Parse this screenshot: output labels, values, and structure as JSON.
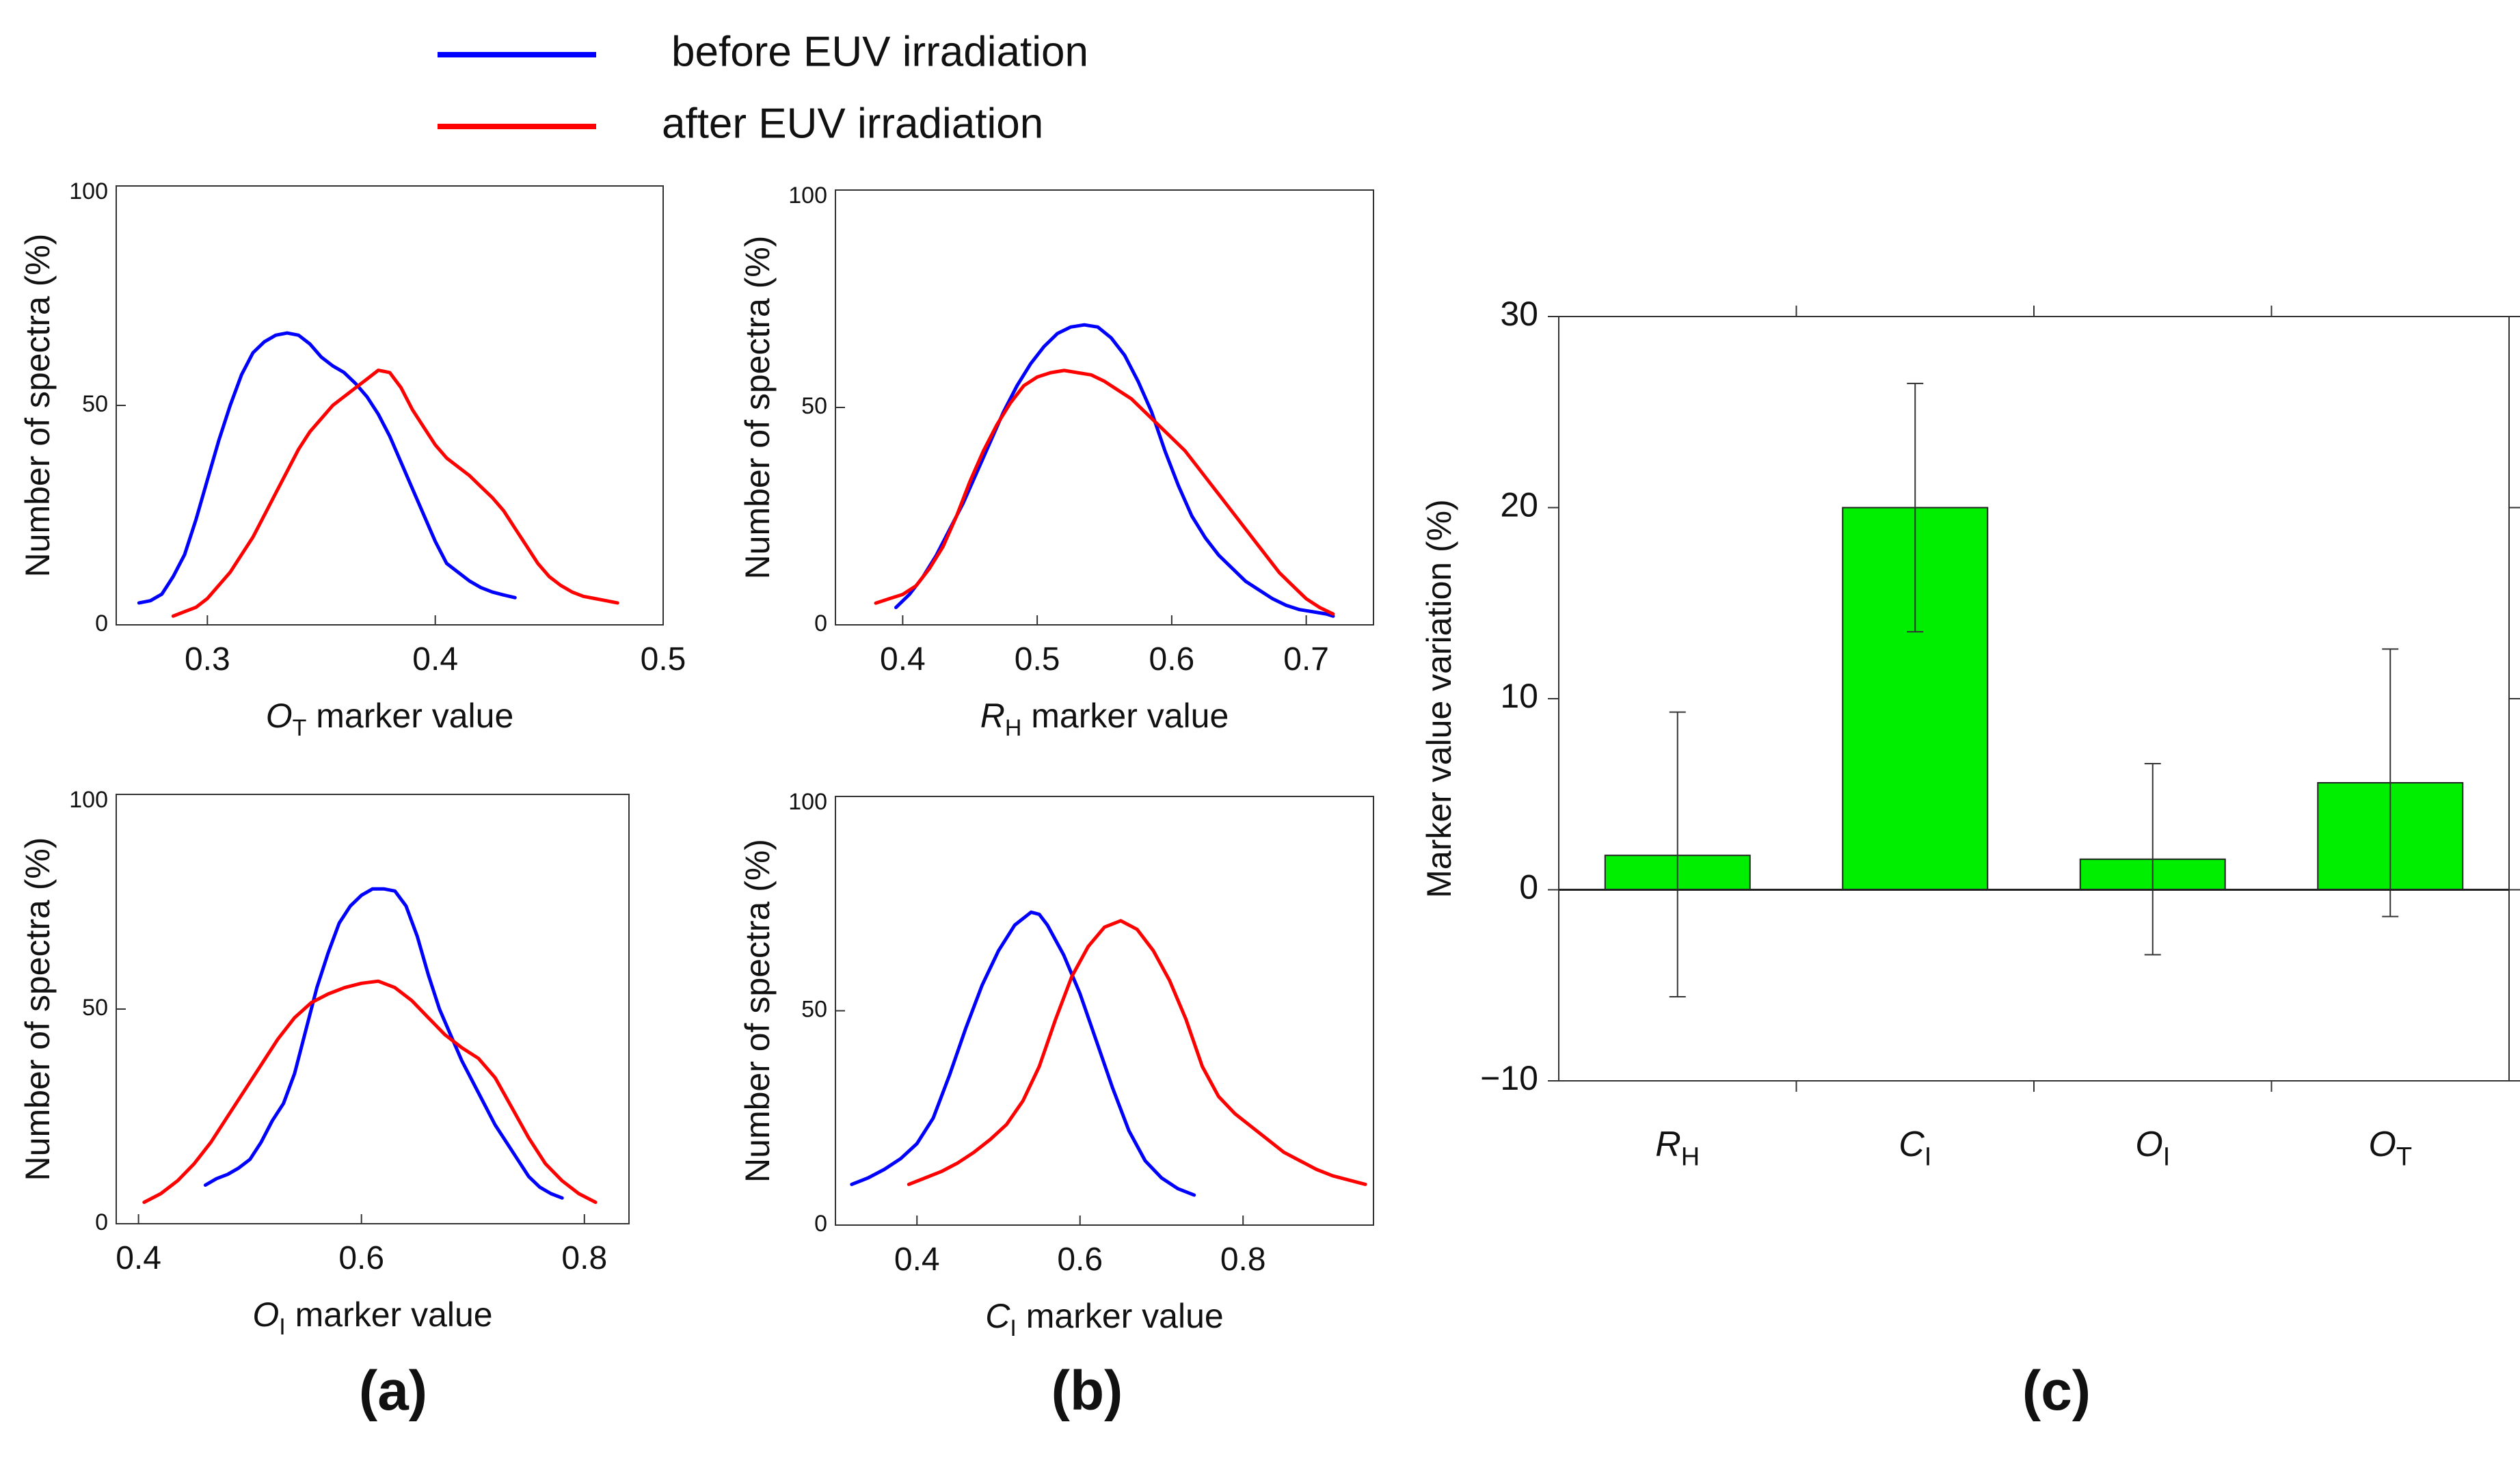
{
  "legend": {
    "items": [
      {
        "label": "before EUV irradiation",
        "color": "#0000ff"
      },
      {
        "label": "after  EUV irradiation",
        "color": "#ff0000"
      }
    ]
  },
  "panel_labels": {
    "a": "(a)",
    "b": "(b)",
    "c": "(c)"
  },
  "chart_data": [
    {
      "id": "ot",
      "type": "line",
      "ylabel": "Number of spectra (%)",
      "xlabel_main": "O",
      "xlabel_sub": "T",
      "xlabel_rest": " marker  value",
      "xlim": [
        0.26,
        0.5
      ],
      "ylim": [
        0,
        100
      ],
      "xticks": [
        0.3,
        0.4,
        0.5
      ],
      "xtick_labels": [
        "0.3",
        "0.4",
        "0.5"
      ],
      "yticks": [
        0,
        50,
        100
      ],
      "ytick_labels": [
        "0",
        "50",
        "100"
      ],
      "series": [
        {
          "name": "before EUV irradiation",
          "color": "#0000ff",
          "x": [
            0.27,
            0.275,
            0.28,
            0.285,
            0.29,
            0.295,
            0.3,
            0.305,
            0.31,
            0.315,
            0.32,
            0.325,
            0.33,
            0.335,
            0.34,
            0.345,
            0.35,
            0.355,
            0.36,
            0.365,
            0.37,
            0.375,
            0.38,
            0.385,
            0.39,
            0.395,
            0.4,
            0.405,
            0.41,
            0.415,
            0.42,
            0.425,
            0.43,
            0.435
          ],
          "y": [
            5,
            5.5,
            7,
            11,
            16,
            24,
            33,
            42,
            50,
            57,
            62,
            64.5,
            66,
            66.5,
            66,
            64,
            61,
            59,
            57.5,
            55,
            52,
            48,
            43,
            37,
            31,
            25,
            19,
            14,
            12,
            10,
            8.5,
            7.5,
            6.8,
            6.2
          ]
        },
        {
          "name": "after  EUV irradiation",
          "color": "#ff0000",
          "x": [
            0.285,
            0.29,
            0.295,
            0.3,
            0.305,
            0.31,
            0.315,
            0.32,
            0.325,
            0.33,
            0.335,
            0.34,
            0.345,
            0.35,
            0.355,
            0.36,
            0.365,
            0.37,
            0.375,
            0.38,
            0.385,
            0.39,
            0.395,
            0.4,
            0.405,
            0.41,
            0.415,
            0.42,
            0.425,
            0.43,
            0.435,
            0.44,
            0.445,
            0.45,
            0.455,
            0.46,
            0.465,
            0.47,
            0.475,
            0.48
          ],
          "y": [
            2,
            3,
            4,
            6,
            9,
            12,
            16,
            20,
            25,
            30,
            35,
            40,
            44,
            47,
            50,
            52,
            54,
            56,
            58,
            57.5,
            54,
            49,
            45,
            41,
            38,
            36,
            34,
            31.5,
            29,
            26,
            22,
            18,
            14,
            11,
            9,
            7.5,
            6.5,
            6,
            5.5,
            5
          ]
        }
      ]
    },
    {
      "id": "rh",
      "type": "line",
      "ylabel": "Number of spectra (%)",
      "xlabel_main": "R",
      "xlabel_sub": "H",
      "xlabel_rest": " marker  value",
      "xlim": [
        0.35,
        0.75
      ],
      "ylim": [
        0,
        100
      ],
      "xticks": [
        0.4,
        0.5,
        0.6,
        0.7
      ],
      "xtick_labels": [
        "0.4",
        "0.5",
        "0.6",
        "0.7"
      ],
      "yticks": [
        0,
        50,
        100
      ],
      "ytick_labels": [
        "0",
        "50",
        "100"
      ],
      "series": [
        {
          "name": "before EUV irradiation",
          "color": "#0000ff",
          "x": [
            0.395,
            0.405,
            0.415,
            0.425,
            0.435,
            0.445,
            0.455,
            0.465,
            0.475,
            0.485,
            0.495,
            0.505,
            0.515,
            0.525,
            0.535,
            0.545,
            0.555,
            0.565,
            0.575,
            0.585,
            0.595,
            0.605,
            0.615,
            0.625,
            0.635,
            0.645,
            0.655,
            0.665,
            0.675,
            0.685,
            0.695,
            0.705,
            0.715,
            0.72
          ],
          "y": [
            4,
            7,
            11,
            16,
            22,
            28,
            35,
            42,
            49,
            55,
            60,
            64,
            67,
            68.5,
            69,
            68.5,
            66,
            62,
            56,
            49,
            40,
            32,
            25,
            20,
            16,
            13,
            10,
            8,
            6,
            4.5,
            3.5,
            3,
            2.5,
            2
          ]
        },
        {
          "name": "after  EUV irradiation",
          "color": "#ff0000",
          "x": [
            0.38,
            0.39,
            0.4,
            0.41,
            0.42,
            0.43,
            0.44,
            0.45,
            0.46,
            0.47,
            0.48,
            0.49,
            0.5,
            0.51,
            0.52,
            0.53,
            0.54,
            0.55,
            0.56,
            0.57,
            0.58,
            0.59,
            0.6,
            0.61,
            0.62,
            0.63,
            0.64,
            0.65,
            0.66,
            0.67,
            0.68,
            0.69,
            0.7,
            0.71,
            0.72
          ],
          "y": [
            5,
            6,
            7,
            9,
            13,
            18,
            25,
            33,
            40,
            46,
            51,
            55,
            57,
            58,
            58.5,
            58,
            57.5,
            56,
            54,
            52,
            49,
            46,
            43,
            40,
            36,
            32,
            28,
            24,
            20,
            16,
            12,
            9,
            6,
            4,
            2.5
          ]
        }
      ]
    },
    {
      "id": "oi",
      "type": "line",
      "ylabel": "Number of spectra (%)",
      "xlabel_main": "O",
      "xlabel_sub": "I",
      "xlabel_rest": " marker  value",
      "xlim": [
        0.38,
        0.84
      ],
      "ylim": [
        0,
        100
      ],
      "xticks": [
        0.4,
        0.6,
        0.8
      ],
      "xtick_labels": [
        "0.4",
        "0.6",
        "0.8"
      ],
      "yticks": [
        0,
        50,
        100
      ],
      "ytick_labels": [
        "0",
        "50",
        "100"
      ],
      "series": [
        {
          "name": "before EUV irradiation",
          "color": "#0000ff",
          "x": [
            0.46,
            0.47,
            0.48,
            0.49,
            0.5,
            0.51,
            0.52,
            0.53,
            0.54,
            0.55,
            0.56,
            0.57,
            0.58,
            0.59,
            0.6,
            0.61,
            0.62,
            0.63,
            0.64,
            0.65,
            0.66,
            0.67,
            0.68,
            0.69,
            0.7,
            0.71,
            0.72,
            0.73,
            0.74,
            0.75,
            0.76,
            0.77,
            0.78
          ],
          "y": [
            9,
            10.5,
            11.5,
            13,
            15,
            19,
            24,
            28,
            35,
            45,
            55,
            63,
            70,
            74,
            76.5,
            78,
            78,
            77.5,
            74,
            67,
            58,
            50,
            44,
            38,
            33,
            28,
            23,
            19,
            15,
            11,
            8.5,
            7,
            6
          ]
        },
        {
          "name": "after  EUV irradiation",
          "color": "#ff0000",
          "x": [
            0.405,
            0.42,
            0.435,
            0.45,
            0.465,
            0.48,
            0.495,
            0.51,
            0.525,
            0.54,
            0.555,
            0.57,
            0.585,
            0.6,
            0.615,
            0.63,
            0.645,
            0.66,
            0.675,
            0.69,
            0.705,
            0.72,
            0.735,
            0.75,
            0.765,
            0.78,
            0.795,
            0.81
          ],
          "y": [
            5,
            7,
            10,
            14,
            19,
            25,
            31,
            37,
            43,
            48,
            51.5,
            53.5,
            55,
            56,
            56.5,
            55,
            52,
            48,
            44,
            41,
            38.5,
            34,
            27,
            20,
            14,
            10,
            7,
            5
          ]
        }
      ]
    },
    {
      "id": "ci",
      "type": "line",
      "ylabel": "Number of spectra (%)",
      "xlabel_main": "C",
      "xlabel_sub": "I",
      "xlabel_rest": " marker  value",
      "xlim": [
        0.3,
        0.96
      ],
      "ylim": [
        0,
        100
      ],
      "xticks": [
        0.4,
        0.6,
        0.8
      ],
      "xtick_labels": [
        "0.4",
        "0.6",
        "0.8"
      ],
      "yticks": [
        0,
        50,
        100
      ],
      "ytick_labels": [
        "0",
        "50",
        "100"
      ],
      "series": [
        {
          "name": "before EUV irradiation",
          "color": "#0000ff",
          "x": [
            0.32,
            0.34,
            0.36,
            0.38,
            0.4,
            0.42,
            0.44,
            0.46,
            0.48,
            0.5,
            0.52,
            0.54,
            0.55,
            0.56,
            0.58,
            0.6,
            0.62,
            0.64,
            0.66,
            0.68,
            0.7,
            0.72,
            0.74
          ],
          "y": [
            9.5,
            11,
            13,
            15.5,
            19,
            25,
            35,
            46,
            56,
            64,
            70,
            73,
            72.5,
            70,
            63,
            54,
            43,
            32,
            22,
            15,
            11,
            8.5,
            7
          ]
        },
        {
          "name": "after  EUV irradiation",
          "color": "#ff0000",
          "x": [
            0.39,
            0.41,
            0.43,
            0.45,
            0.47,
            0.49,
            0.51,
            0.53,
            0.55,
            0.57,
            0.59,
            0.61,
            0.63,
            0.65,
            0.67,
            0.69,
            0.71,
            0.73,
            0.75,
            0.77,
            0.79,
            0.81,
            0.83,
            0.85,
            0.87,
            0.89,
            0.91,
            0.93,
            0.95
          ],
          "y": [
            9.5,
            11,
            12.5,
            14.5,
            17,
            20,
            23.5,
            29,
            37,
            48,
            58,
            65,
            69.5,
            71,
            69,
            64,
            57,
            48,
            37,
            30,
            26,
            23,
            20,
            17,
            15,
            13,
            11.5,
            10.5,
            9.5
          ]
        }
      ]
    },
    {
      "id": "variation",
      "type": "bar",
      "ylabel": "Marker value variation (%)",
      "ylim": [
        -10,
        30
      ],
      "yticks": [
        -10,
        0,
        10,
        20,
        30
      ],
      "ytick_labels": [
        "−10",
        "0",
        "10",
        "20",
        "30"
      ],
      "bar_color": "#00ee00",
      "categories": [
        {
          "main": "R",
          "sub": "H"
        },
        {
          "main": "C",
          "sub": "I"
        },
        {
          "main": "O",
          "sub": "I"
        },
        {
          "main": "O",
          "sub": "T"
        }
      ],
      "values": [
        1.8,
        20,
        1.6,
        5.6
      ],
      "error_low": [
        -5.6,
        13.5,
        -3.4,
        -1.4
      ],
      "error_high": [
        9.3,
        26.5,
        6.6,
        12.6
      ]
    }
  ]
}
